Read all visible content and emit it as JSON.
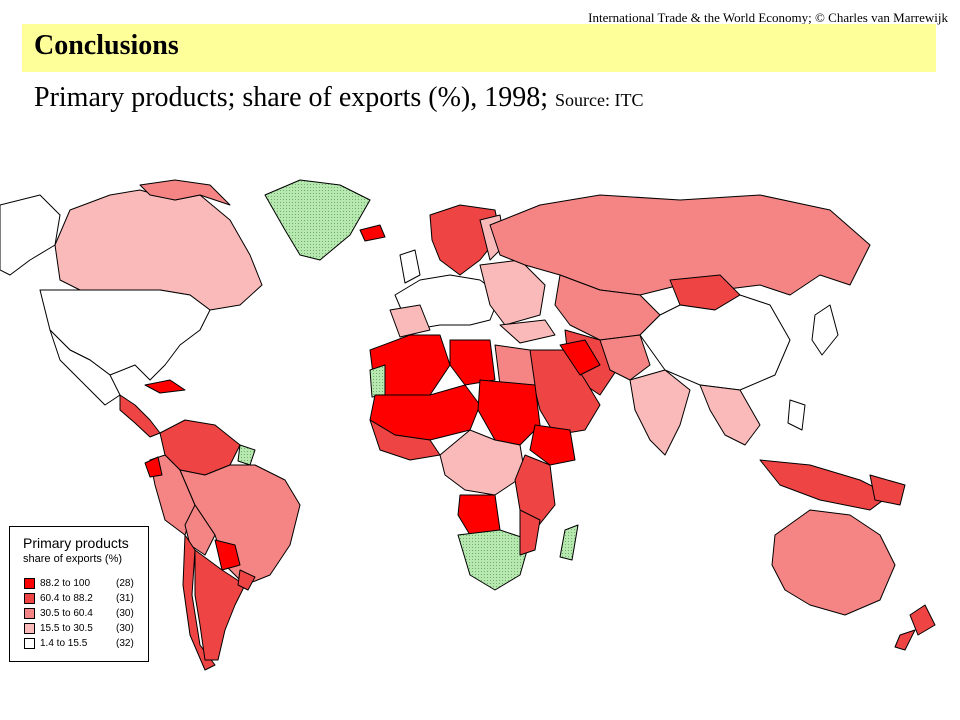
{
  "header": {
    "credit": "International Trade & the World Economy;  © Charles van Marrewijk",
    "title": "Conclusions",
    "subtitle_main": "Primary products; share of exports (%), 1998; ",
    "subtitle_source": "Source: ITC"
  },
  "legend": {
    "title": "Primary products",
    "subtitle": "share of exports (%)",
    "classes": [
      {
        "range": "88.2 to 100",
        "count": "(28)",
        "color": "#ff0000"
      },
      {
        "range": "60.4 to   88.2",
        "count": "(31)",
        "color": "#ef4444"
      },
      {
        "range": "30.5 to   60.4",
        "count": "(30)",
        "color": "#f58484"
      },
      {
        "range": "15.5 to   30.5",
        "count": "(30)",
        "color": "#fbbaba"
      },
      {
        "range": "1.4 to   15.5",
        "count": "(32)",
        "color": "#ffffff"
      }
    ],
    "no_data_color": "#b6e8b0"
  }
}
